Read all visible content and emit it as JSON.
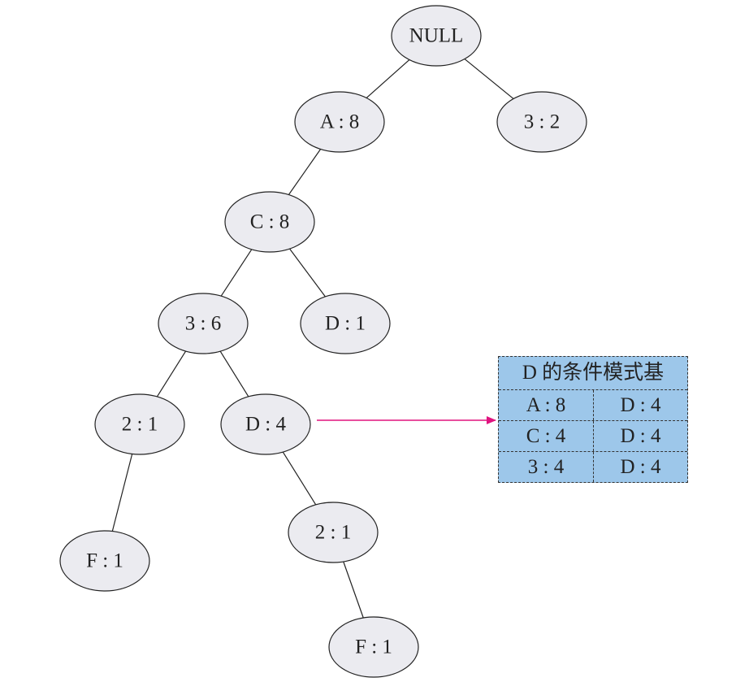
{
  "tree": {
    "nodes": [
      {
        "label": "NULL",
        "parent": null
      },
      {
        "label": "A : 8",
        "parent": 0
      },
      {
        "label": "3 : 2",
        "parent": 0
      },
      {
        "label": "C : 8",
        "parent": 1
      },
      {
        "label": "3 : 6",
        "parent": 3
      },
      {
        "label": "D : 1",
        "parent": 3
      },
      {
        "label": "2 : 1",
        "parent": 4
      },
      {
        "label": "D : 4",
        "parent": 4
      },
      {
        "label": "F : 1",
        "parent": 6
      },
      {
        "label": "2 : 1",
        "parent": 7
      },
      {
        "label": "F : 1",
        "parent": 9
      }
    ],
    "node_fill": "#ebebf0",
    "arrow_color": "#e0137f"
  },
  "conditional_base": {
    "title": "D 的条件模式基",
    "rows": [
      [
        "A : 8",
        "D : 4"
      ],
      [
        "C : 4",
        "D : 4"
      ],
      [
        "3 : 4",
        "D : 4"
      ]
    ],
    "fill": "#9dc7ea"
  }
}
